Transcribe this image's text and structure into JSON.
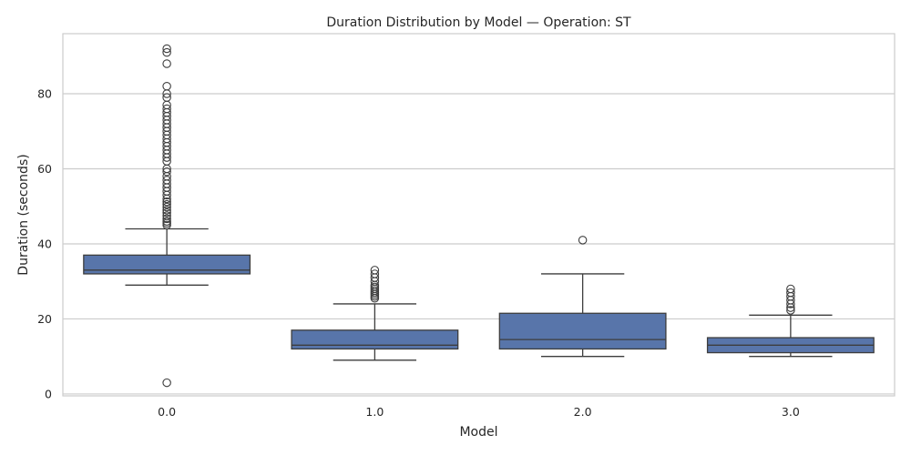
{
  "chart_data": {
    "type": "box",
    "title": "Duration Distribution by Model — Operation: ST",
    "xlabel": "Model",
    "ylabel": "Duration (seconds)",
    "categories": [
      "0.0",
      "1.0",
      "2.0",
      "3.0"
    ],
    "ylim": [
      -0.5,
      96
    ],
    "yticks": [
      0,
      20,
      40,
      60,
      80
    ],
    "grid": true,
    "legend": "none",
    "box_color": "#5875aa",
    "line_color": "#3d3d3d",
    "grid_color": "#cccccc",
    "boxes": [
      {
        "category": "0.0",
        "whisker_low": 29,
        "q1": 32,
        "median": 33,
        "q3": 37,
        "whisker_high": 44,
        "outliers": [
          3,
          45,
          45.5,
          46,
          46.7,
          47.5,
          48.3,
          49,
          49.8,
          50.5,
          51.2,
          52,
          53,
          54,
          55,
          56,
          57,
          58,
          59.2,
          60,
          62,
          63,
          64,
          65,
          66,
          67,
          68,
          69,
          70,
          71,
          72,
          73,
          74,
          75,
          76,
          77,
          79,
          80,
          82,
          88,
          91,
          92
        ]
      },
      {
        "category": "1.0",
        "whisker_low": 9,
        "q1": 12,
        "median": 13,
        "q3": 17,
        "whisker_high": 24,
        "outliers": [
          25.5,
          26,
          26.5,
          27,
          27.5,
          28,
          28.5,
          29,
          30,
          31,
          32,
          33
        ]
      },
      {
        "category": "2.0",
        "whisker_low": 10,
        "q1": 12,
        "median": 14.5,
        "q3": 21.5,
        "whisker_high": 32,
        "outliers": [
          41
        ]
      },
      {
        "category": "3.0",
        "whisker_low": 10,
        "q1": 11,
        "median": 13,
        "q3": 15,
        "whisker_high": 21,
        "outliers": [
          22.3,
          23,
          24,
          25,
          26,
          27,
          28
        ]
      }
    ]
  }
}
